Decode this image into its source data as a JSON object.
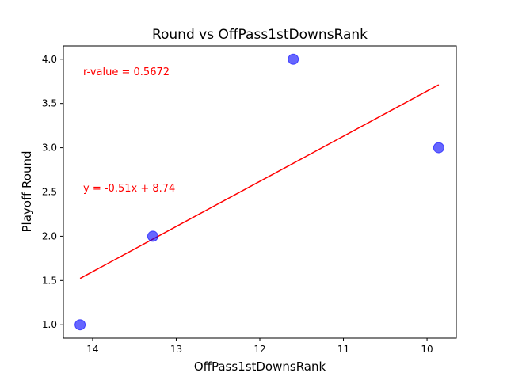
{
  "chart_data": {
    "type": "scatter",
    "title": "Round vs OffPass1stDownsRank",
    "xlabel": "OffPass1stDownsRank",
    "ylabel": "Playoff Round",
    "x_inverted": true,
    "xlim": [
      14.35,
      9.65
    ],
    "ylim": [
      0.85,
      4.15
    ],
    "xticks": [
      14,
      13,
      12,
      11,
      10
    ],
    "yticks": [
      "1.0",
      "1.5",
      "2.0",
      "2.5",
      "3.0",
      "3.5",
      "4.0"
    ],
    "series": [
      {
        "points": [
          {
            "x": 14.15,
            "y": 1.0
          },
          {
            "x": 13.28,
            "y": 2.0
          },
          {
            "x": 11.6,
            "y": 4.0
          },
          {
            "x": 9.86,
            "y": 3.0
          }
        ],
        "color": "#0000ff",
        "marker_opacity": 0.6
      }
    ],
    "regression_line": {
      "x": [
        14.15,
        9.86
      ],
      "slope": -0.51,
      "intercept": 8.74,
      "color": "#ff0000"
    },
    "annotations": [
      {
        "text": "r-value = 0.5672",
        "color": "#ff0000"
      },
      {
        "text": "y = -0.51x + 8.74",
        "color": "#ff0000"
      }
    ],
    "grid": false
  }
}
